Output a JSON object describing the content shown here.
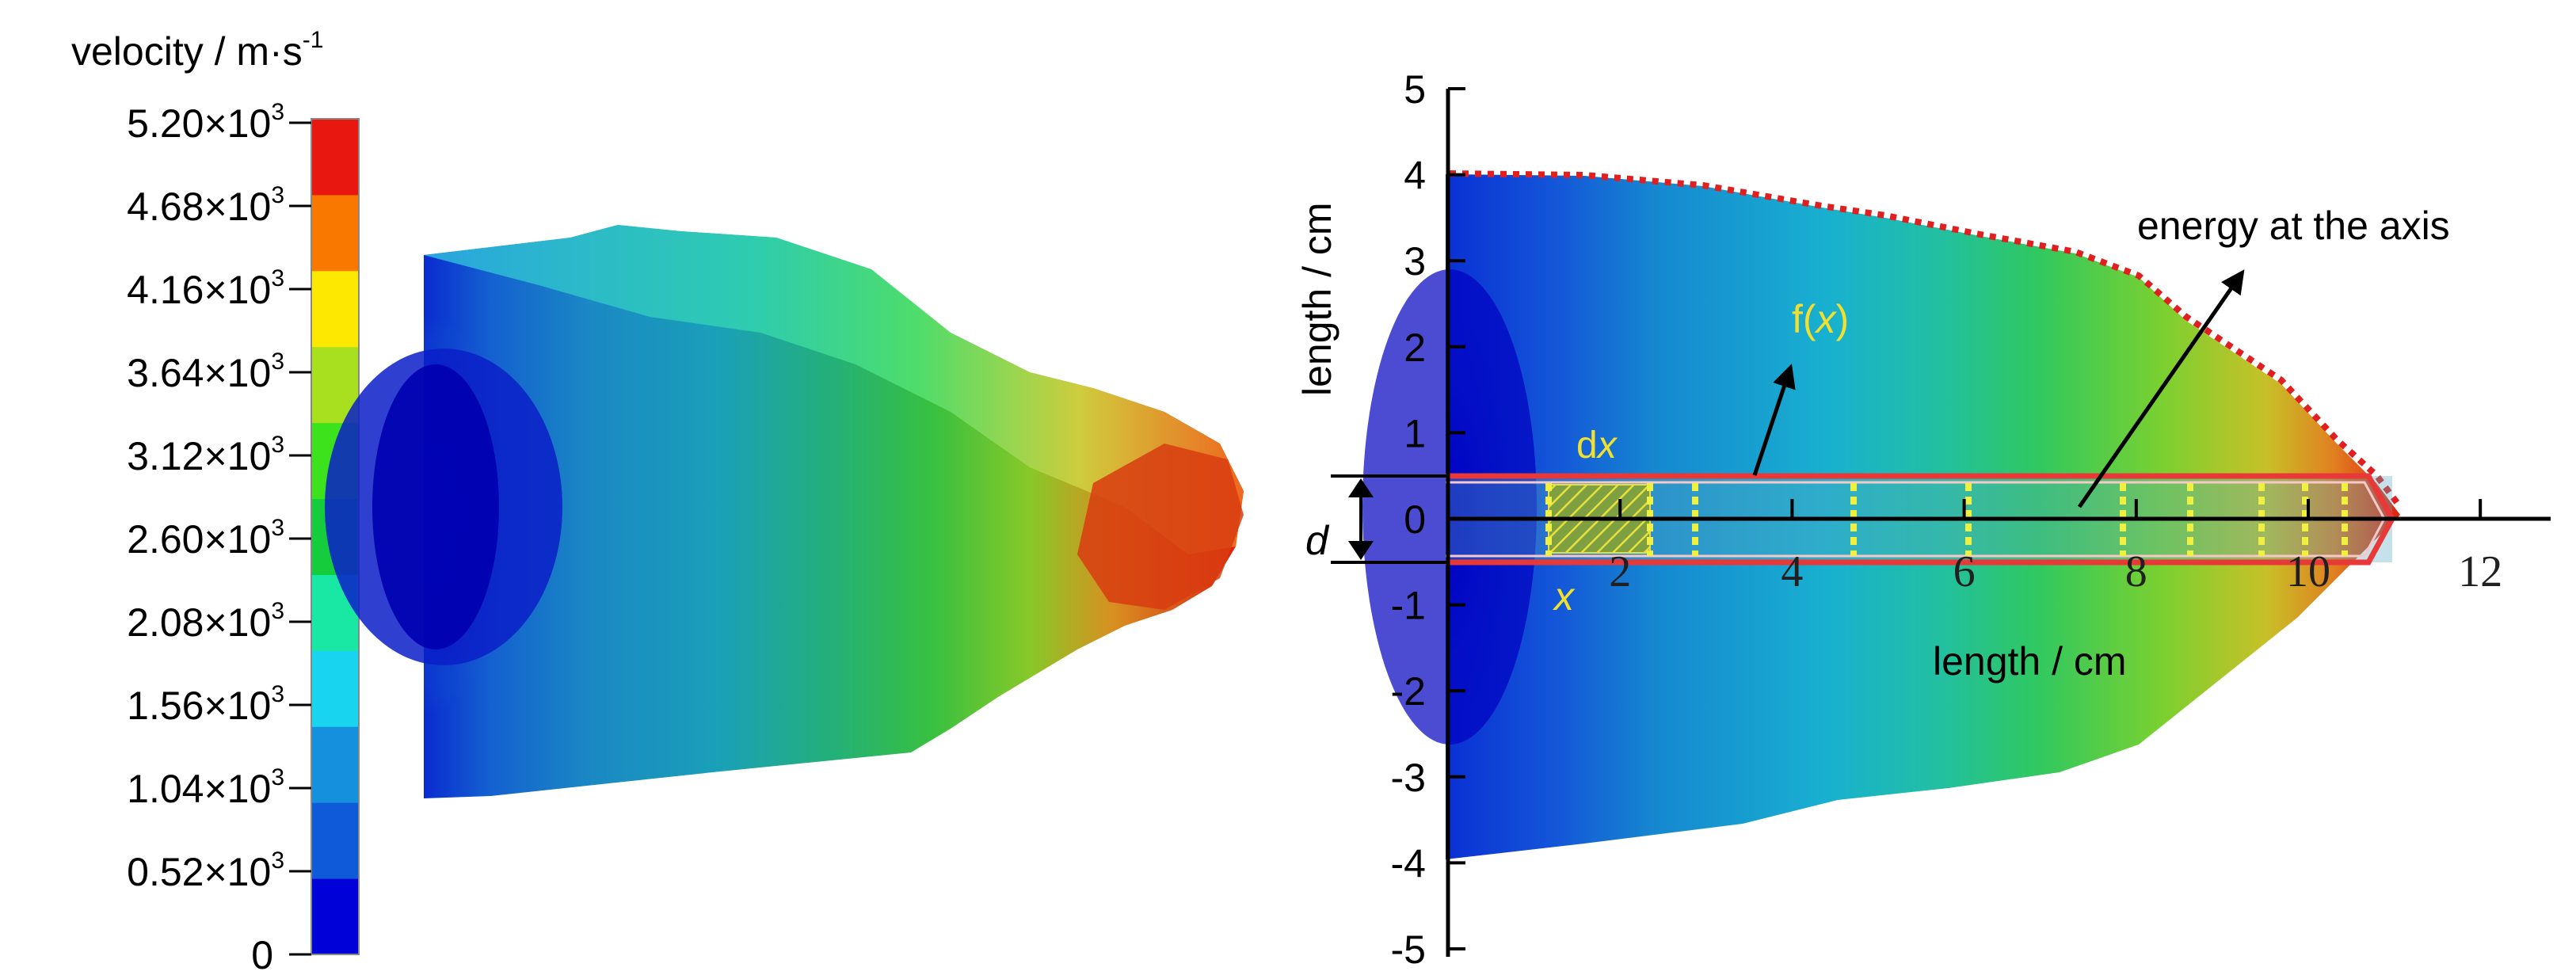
{
  "legend": {
    "title_main": "velocity / m·s",
    "title_exp": "-1",
    "colors": [
      "#0000d8",
      "#0f5ad8",
      "#1490dc",
      "#18d4ee",
      "#18e8a4",
      "#14cc3c",
      "#3ce21c",
      "#a8e020",
      "#fce800",
      "#f87800",
      "#e81810"
    ],
    "labels": [
      {
        "mant": "0",
        "exp": ""
      },
      {
        "mant": "0.52×10",
        "exp": "3"
      },
      {
        "mant": "1.04×10",
        "exp": "3"
      },
      {
        "mant": "1.56×10",
        "exp": "3"
      },
      {
        "mant": "2.08×10",
        "exp": "3"
      },
      {
        "mant": "2.60×10",
        "exp": "3"
      },
      {
        "mant": "3.12×10",
        "exp": "3"
      },
      {
        "mant": "3.64×10",
        "exp": "3"
      },
      {
        "mant": "4.16×10",
        "exp": "3"
      },
      {
        "mant": "4.68×10",
        "exp": "3"
      },
      {
        "mant": "5.20×10",
        "exp": "3"
      }
    ]
  },
  "plot": {
    "ylabel": "length / cm",
    "xlabel": "length / cm",
    "y_ticks": [
      "5",
      "4",
      "3",
      "2",
      "1",
      "0",
      "-1",
      "-2",
      "-3",
      "-4",
      "-5"
    ],
    "x_ticks": [
      "2",
      "4",
      "6",
      "8",
      "10",
      "12"
    ],
    "annotations": {
      "fx_main": "f(",
      "fx_var": "x",
      "fx_close": ")",
      "dx_d": "d",
      "dx_x": "x",
      "x_var": "x",
      "d_var": "d",
      "energy": "energy at the axis"
    }
  }
}
